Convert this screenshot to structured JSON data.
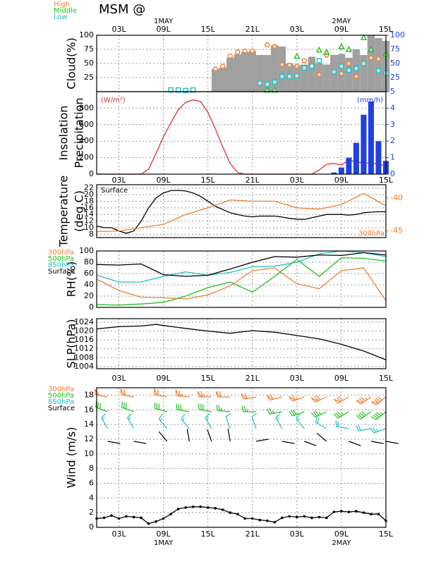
{
  "title": "MSM @",
  "time_axis": {
    "xlim": [
      0,
      39
    ],
    "xticks": [
      {
        "value": 3,
        "label": "03L"
      },
      {
        "value": 9,
        "label": "09L"
      },
      {
        "value": 15,
        "label": "15L"
      },
      {
        "value": 21,
        "label": "21L"
      },
      {
        "value": 27,
        "label": "03L"
      },
      {
        "value": 33,
        "label": "09L"
      },
      {
        "value": 39,
        "label": "15L"
      }
    ],
    "dates": [
      {
        "value": 9,
        "label": "1MAY"
      },
      {
        "value": 33,
        "label": "2MAY"
      }
    ]
  },
  "chart_data": [
    {
      "type": "cloud",
      "ylabel": [
        "Cloud(%)"
      ],
      "legend": "above-left",
      "ylim": [
        0,
        100
      ],
      "yticks": [
        25,
        50,
        75,
        100
      ],
      "y2lim": [
        0,
        100
      ],
      "y2ticks": [
        25,
        50,
        75,
        100
      ],
      "y2color": "#2040e0",
      "grid": true,
      "total": {
        "color": "#a0a0a0",
        "x": [
          16,
          17,
          18,
          19,
          20,
          21,
          22,
          23,
          24,
          25,
          26,
          27,
          28,
          29,
          30,
          31,
          32,
          33,
          34,
          35,
          36,
          37,
          38,
          39
        ],
        "values": [
          40,
          43,
          60,
          66,
          70,
          72,
          65,
          65,
          82,
          80,
          50,
          47,
          48,
          62,
          50,
          48,
          65,
          67,
          60,
          75,
          65,
          100,
          95,
          90
        ]
      },
      "series": [
        {
          "name": "High",
          "color": "#f08030",
          "marker": "circle",
          "x": [
            16,
            17,
            18,
            19,
            20,
            21,
            23,
            24,
            25,
            26,
            27,
            28,
            29,
            30,
            31,
            33,
            34,
            35,
            37,
            38
          ],
          "values": [
            40,
            45,
            63,
            70,
            72,
            72,
            83,
            80,
            48,
            47,
            45,
            55,
            47,
            30,
            65,
            32,
            50,
            27,
            60,
            58
          ]
        },
        {
          "name": "Middle",
          "color": "#20c020",
          "marker": "triangle",
          "x": [
            23,
            24,
            27,
            30,
            31,
            33,
            34,
            36,
            37,
            39
          ],
          "values": [
            3,
            3,
            63,
            74,
            70,
            80,
            75,
            96,
            75,
            67
          ]
        },
        {
          "name": "Low",
          "color": "#20c0c0",
          "marker": "square",
          "x": [
            10,
            11,
            12,
            13,
            22,
            23,
            24,
            25,
            26,
            27,
            28,
            29,
            30,
            32,
            33,
            34,
            35,
            36,
            38,
            39
          ],
          "values": [
            3,
            3,
            2,
            3,
            15,
            13,
            17,
            27,
            27,
            28,
            42,
            45,
            55,
            35,
            45,
            38,
            41,
            50,
            37,
            33
          ]
        }
      ]
    },
    {
      "type": "insolation",
      "ylabel": [
        "Insolation",
        "Precipitation"
      ],
      "legend": "corners",
      "ylim": [
        0,
        1000
      ],
      "yticks": [
        0,
        200,
        400,
        600,
        800
      ],
      "y2lim": [
        0,
        5
      ],
      "y2ticks": [
        0,
        1,
        2,
        3,
        4,
        5
      ],
      "y2color": "#2040e0",
      "grid": true,
      "series": [
        {
          "name": "(W/m²)",
          "color": "#e03030",
          "x": [
            0,
            6,
            7,
            8,
            9,
            10,
            11,
            12,
            13,
            14,
            15,
            16,
            17,
            18,
            19,
            20,
            29,
            30,
            31,
            32,
            33,
            34,
            35,
            36,
            37,
            38,
            39
          ],
          "values": [
            0,
            0,
            60,
            250,
            450,
            620,
            780,
            870,
            900,
            880,
            750,
            550,
            330,
            130,
            20,
            0,
            0,
            50,
            120,
            130,
            110,
            170,
            150,
            130,
            140,
            120,
            100
          ]
        },
        {
          "name": "(mm/h)",
          "color": "#2040e0",
          "axis": "y2",
          "x": [
            32,
            33,
            34,
            35,
            36,
            37,
            38,
            39
          ],
          "values": [
            0.1,
            0.4,
            1.0,
            1.9,
            3.6,
            4.4,
            2.0,
            0.8
          ]
        }
      ]
    },
    {
      "type": "line",
      "ylabel": [
        "Temperature",
        "(deg.C)"
      ],
      "legend": "inside",
      "ylim": [
        7,
        23
      ],
      "yticks": [
        8,
        10,
        12,
        14,
        16,
        18,
        20,
        22
      ],
      "y2lim": [
        -46,
        -38
      ],
      "y2ticks": [
        -45,
        -40
      ],
      "y2color": "#f08030",
      "grid": true,
      "series": [
        {
          "name": "Surface",
          "color": "#000000",
          "x": [
            0,
            1,
            2,
            3,
            4,
            5,
            6,
            7,
            8,
            9,
            10,
            11,
            12,
            13,
            14,
            15,
            16,
            17,
            18,
            19,
            20,
            21,
            22,
            23,
            24,
            25,
            26,
            27,
            28,
            29,
            30,
            31,
            32,
            33,
            34,
            35,
            36,
            37,
            38,
            39
          ],
          "values": [
            10.5,
            10,
            10,
            9,
            8.3,
            9,
            12,
            16,
            19,
            20.5,
            21.2,
            21.3,
            21.1,
            20.5,
            19.5,
            18,
            16.5,
            15.5,
            14.5,
            14,
            13.5,
            13.3,
            13.5,
            13.5,
            13.5,
            13.2,
            12.8,
            12.6,
            12.5,
            13,
            13.5,
            14,
            14,
            14,
            13.8,
            14,
            14.5,
            14.7,
            14.8,
            14.8
          ]
        },
        {
          "name": "300hPa",
          "color": "#f08030",
          "axis": "y2",
          "x": [
            0,
            3,
            6,
            9,
            12,
            15,
            18,
            21,
            24,
            27,
            30,
            33,
            36,
            39
          ],
          "values": [
            -45.1,
            -45,
            -44.5,
            -44,
            -42.5,
            -41.5,
            -40.3,
            -40.5,
            -40.5,
            -41.5,
            -41.7,
            -41,
            -39.3,
            -41.2
          ]
        }
      ]
    },
    {
      "type": "line",
      "ylabel": [
        "RH(%)"
      ],
      "legend": "left",
      "ylim": [
        0,
        100
      ],
      "yticks": [
        0,
        20,
        40,
        60,
        80,
        100
      ],
      "grid": true,
      "series": [
        {
          "name": "300hPa",
          "color": "#f08030",
          "x": [
            0,
            3,
            6,
            9,
            12,
            15,
            18,
            21,
            24,
            27,
            30,
            33,
            36,
            39
          ],
          "values": [
            50,
            30,
            18,
            17,
            15,
            22,
            38,
            65,
            70,
            42,
            33,
            65,
            70,
            12
          ]
        },
        {
          "name": "500hPa",
          "color": "#20c020",
          "x": [
            0,
            3,
            6,
            9,
            12,
            15,
            18,
            21,
            24,
            27,
            30,
            33,
            36,
            39
          ],
          "values": [
            5,
            4,
            6,
            9,
            20,
            35,
            45,
            27,
            55,
            85,
            55,
            88,
            87,
            82
          ]
        },
        {
          "name": "850hPa",
          "color": "#20c0c0",
          "x": [
            0,
            3,
            6,
            9,
            12,
            15,
            18,
            21,
            24,
            27,
            30,
            33,
            36,
            39
          ],
          "values": [
            57,
            45,
            45,
            55,
            63,
            57,
            62,
            72,
            73,
            80,
            95,
            100,
            97,
            90
          ]
        },
        {
          "name": "Surface",
          "color": "#000000",
          "x": [
            0,
            3,
            6,
            9,
            12,
            15,
            18,
            21,
            24,
            27,
            30,
            33,
            36,
            39
          ],
          "values": [
            76,
            75,
            77,
            58,
            55,
            57,
            68,
            80,
            90,
            89,
            93,
            92,
            97,
            93
          ]
        }
      ]
    },
    {
      "type": "line",
      "ylabel": [
        "SLP(hPa)"
      ],
      "ylim": [
        1003,
        1025.6
      ],
      "yticks": [
        1004,
        1008,
        1012,
        1016,
        1020,
        1024
      ],
      "grid": true,
      "series": [
        {
          "color": "#000000",
          "x": [
            0,
            3,
            6,
            8,
            9,
            12,
            15,
            18,
            21,
            24,
            27,
            30,
            33,
            36,
            39
          ],
          "values": [
            1021,
            1022,
            1022.3,
            1023,
            1022.5,
            1021.2,
            1020,
            1019,
            1020.2,
            1019.5,
            1018,
            1016.5,
            1014,
            1011,
            1007
          ]
        }
      ]
    },
    {
      "type": "wind",
      "ylabel": [
        "Wind (m/s)"
      ],
      "legend": "left",
      "ylim": [
        0,
        19
      ],
      "yticks": [
        0,
        2,
        4,
        6,
        8,
        10,
        12,
        14,
        16,
        18
      ],
      "grid": true,
      "series": [
        {
          "name": "300hPa",
          "color": "#f08030",
          "barb_x": [
            1.5,
            5,
            9.5,
            12.5,
            15.5,
            18,
            21.5,
            25,
            28,
            31,
            34,
            37,
            39
          ],
          "direction": [
            280,
            280,
            280,
            275,
            270,
            270,
            260,
            255,
            250,
            245,
            240,
            235,
            230
          ],
          "speed": [
            55,
            60,
            60,
            65,
            65,
            60,
            60,
            60,
            65,
            70,
            70,
            75,
            80
          ]
        },
        {
          "name": "500hPa",
          "color": "#20c020",
          "barb_x": [
            1.5,
            5,
            9.5,
            12.5,
            15.5,
            18,
            21.5,
            25,
            28,
            31,
            34,
            37,
            39
          ],
          "direction": [
            290,
            290,
            285,
            280,
            280,
            275,
            270,
            260,
            250,
            245,
            240,
            235,
            230
          ],
          "speed": [
            30,
            30,
            30,
            30,
            30,
            25,
            25,
            25,
            30,
            35,
            35,
            40,
            45
          ]
        },
        {
          "name": "850hPa",
          "color": "#20c0c0",
          "barb_x": [
            1.5,
            5,
            9.5,
            12.5,
            15.5,
            18,
            21.5,
            25,
            28,
            31,
            34,
            37,
            39
          ],
          "direction": [
            330,
            330,
            320,
            320,
            330,
            340,
            340,
            330,
            320,
            300,
            280,
            260,
            250
          ],
          "speed": [
            15,
            15,
            15,
            15,
            15,
            10,
            10,
            15,
            15,
            20,
            20,
            20,
            25
          ]
        },
        {
          "name": "Surface",
          "color": "#000000",
          "x": [
            0,
            1,
            2,
            3,
            4,
            5,
            6,
            7,
            8,
            9,
            10,
            11,
            12,
            13,
            14,
            15,
            16,
            17,
            18,
            19,
            20,
            21,
            22,
            23,
            24,
            25,
            26,
            27,
            28,
            29,
            30,
            31,
            32,
            33,
            34,
            35,
            36,
            37,
            38,
            39
          ],
          "values": [
            1.2,
            1.3,
            1.6,
            1.2,
            1.5,
            1.4,
            1.3,
            0.5,
            0.8,
            1.2,
            1.8,
            2.5,
            2.7,
            2.8,
            2.8,
            2.7,
            2.6,
            2.4,
            2.0,
            1.8,
            1.2,
            1.2,
            1.0,
            0.9,
            0.7,
            1.3,
            1.5,
            1.4,
            1.5,
            1.3,
            1.4,
            1.3,
            2.1,
            2.2,
            2.1,
            2.2,
            2.0,
            1.8,
            1.8,
            0.9
          ],
          "barb_x": [
            1.5,
            5,
            9.5,
            12.5,
            15.5,
            18,
            21.5,
            25,
            28,
            31,
            34,
            37,
            39
          ],
          "direction": [
            100,
            100,
            320,
            350,
            340,
            350,
            80,
            100,
            110,
            310,
            110,
            100,
            100
          ],
          "speed": [
            4,
            4,
            4,
            4,
            4,
            4,
            4,
            4,
            4,
            4,
            4,
            4,
            4
          ]
        }
      ]
    }
  ]
}
